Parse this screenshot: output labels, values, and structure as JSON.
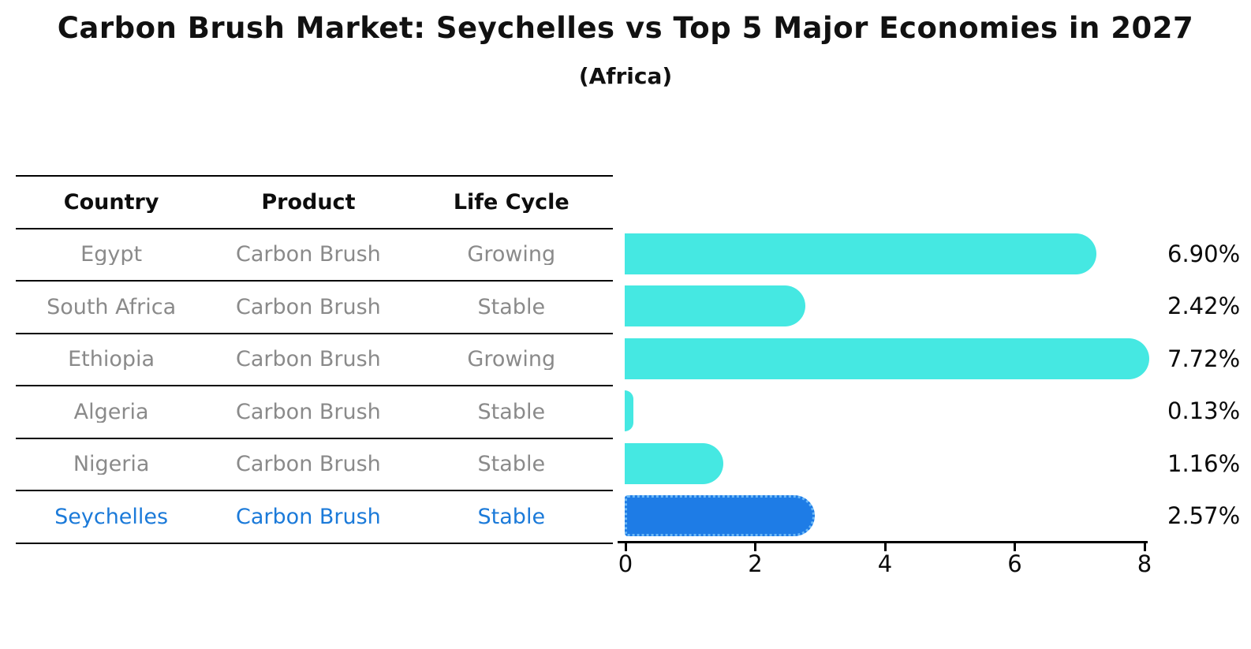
{
  "title": "Carbon Brush Market: Seychelles vs Top 5 Major Economies in 2027",
  "subtitle": "(Africa)",
  "table": {
    "headers": [
      "Country",
      "Product",
      "Life Cycle"
    ],
    "rows": [
      {
        "country": "Egypt",
        "product": "Carbon Brush",
        "life_cycle": "Growing",
        "highlight": false
      },
      {
        "country": "South Africa",
        "product": "Carbon Brush",
        "life_cycle": "Stable",
        "highlight": false
      },
      {
        "country": "Ethiopia",
        "product": "Carbon Brush",
        "life_cycle": "Growing",
        "highlight": false
      },
      {
        "country": "Algeria",
        "product": "Carbon Brush",
        "life_cycle": "Stable",
        "highlight": false
      },
      {
        "country": "Nigeria",
        "product": "Carbon Brush",
        "life_cycle": "Stable",
        "highlight": true,
        "note": ""
      },
      {
        "country": "Seychelles",
        "product": "Carbon Brush",
        "life_cycle": "Stable",
        "highlight": true
      }
    ]
  },
  "chart_data": {
    "type": "bar",
    "orientation": "horizontal",
    "categories": [
      "Egypt",
      "South Africa",
      "Ethiopia",
      "Algeria",
      "Nigeria",
      "Seychelles"
    ],
    "values": [
      6.9,
      2.42,
      7.72,
      0.13,
      1.16,
      2.57
    ],
    "bar_labels": [
      "6.90%",
      "2.42%",
      "7.72%",
      "0.13%",
      "1.16%",
      "2.57%"
    ],
    "x_ticks": [
      "0",
      "2",
      "4",
      "6",
      "8"
    ],
    "x_tick_values": [
      0,
      2,
      4,
      6,
      8
    ],
    "xlim": [
      0,
      8
    ],
    "title": "Carbon Brush Market: Seychelles vs Top 5 Major Economies in 2027",
    "subtitle": "(Africa)",
    "legend_position": "none",
    "grid": false,
    "highlight_index": 5,
    "colors": {
      "bar": "#45e8e2",
      "highlight_bar": "#1e7ce6",
      "highlight_bar_edge": "#6db9f7",
      "highlight_text": "#1b7ad9",
      "muted_text": "#8a8a8a",
      "label_text": "#0a0a0a",
      "axis": "#000000"
    }
  }
}
